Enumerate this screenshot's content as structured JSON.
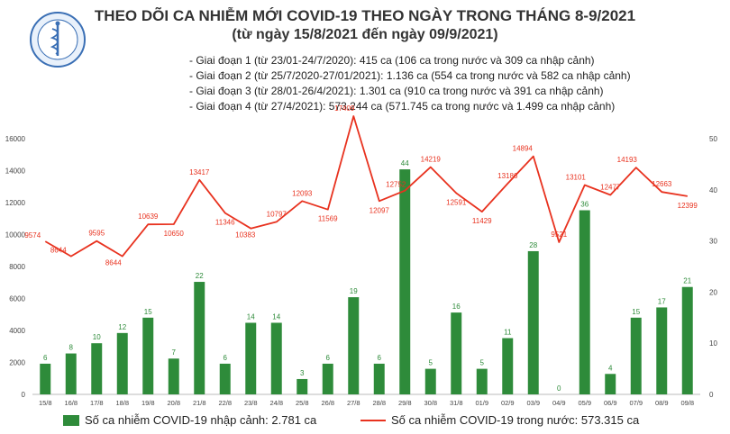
{
  "header": {
    "title": "THEO DÕI CA NHIỄM MỚI COVID-19 THEO NGÀY TRONG THÁNG 8-9/2021",
    "subtitle": "(từ ngày 15/8/2021 đến ngày 09/9/2021)",
    "logo_top_text": "BỘ Y TẾ",
    "logo_bottom_text": "MINISTRY OF HEALTH",
    "notes": [
      "- Giai đoạn 1 (từ 23/01-24/7/2020): 415 ca (106 ca trong nước và 309 ca nhập cảnh)",
      "- Giai đoạn 2 (từ 25/7/2020-27/01/2021): 1.136 ca (554 ca trong nước và 582 ca nhập cảnh)",
      "- Giai đoạn 3 (từ 28/01-26/4/2021): 1.301 ca (910 ca trong nước và 391 ca nhập cảnh)",
      "- Giai đoạn 4 (từ 27/4/2021): 573.244 ca (571.745 ca trong nước và 1.499 ca nhập cảnh)"
    ]
  },
  "chart_data": {
    "type": "bar",
    "categories": [
      "15/8",
      "16/8",
      "17/8",
      "18/8",
      "19/8",
      "20/8",
      "21/8",
      "22/8",
      "23/8",
      "24/8",
      "25/8",
      "26/8",
      "27/8",
      "28/8",
      "29/8",
      "30/8",
      "31/8",
      "01/9",
      "02/9",
      "03/9",
      "04/9",
      "05/9",
      "06/9",
      "07/9",
      "08/9",
      "09/8"
    ],
    "series": [
      {
        "name": "Số ca nhiễm COVID-19 nhập cảnh: 2.781 ca",
        "type": "bar",
        "axis": "right",
        "values": [
          6,
          8,
          10,
          12,
          15,
          7,
          22,
          6,
          14,
          14,
          3,
          6,
          19,
          6,
          44,
          5,
          16,
          5,
          11,
          28,
          0,
          36,
          4,
          15,
          17,
          21
        ]
      },
      {
        "name": "Số ca nhiễm COVID-19 trong nước: 573.315 ca",
        "type": "line",
        "axis": "left",
        "values": [
          9574,
          8644,
          9595,
          8644,
          10639,
          10650,
          13417,
          11346,
          10383,
          10797,
          12093,
          11569,
          17409,
          12097,
          12752,
          14219,
          12591,
          11429,
          13186,
          14894,
          9521,
          13101,
          12477,
          14193,
          12663,
          12399
        ]
      }
    ],
    "left_axis": {
      "ylim": [
        0,
        16000
      ],
      "ticks": [
        0,
        2000,
        4000,
        6000,
        8000,
        10000,
        12000,
        14000,
        16000
      ]
    },
    "right_axis": {
      "ylim": [
        0,
        50
      ],
      "ticks": [
        0,
        10,
        20,
        30,
        40,
        50
      ]
    },
    "colors": {
      "bar": "#2e8b3a",
      "line": "#e8321f",
      "bar_label": "#2e8b3a",
      "line_label": "#e8321f"
    },
    "grid": false,
    "legend_position": "bottom"
  }
}
